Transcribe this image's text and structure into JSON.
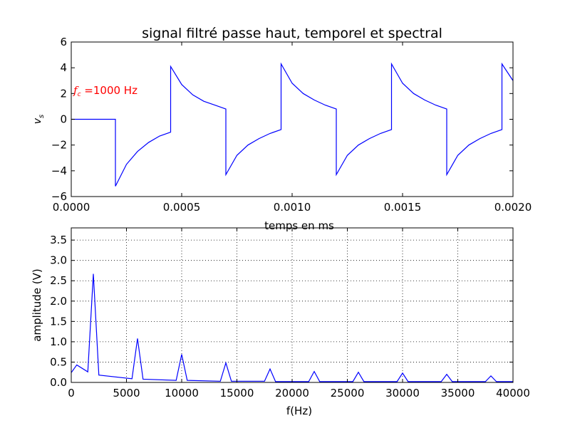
{
  "title": "signal filtré passe haut, temporel et spectral",
  "chart_data": [
    {
      "type": "line",
      "name": "temporal",
      "xlabel": "temps en ms",
      "ylabel": "v_s",
      "annotation": {
        "prefix": "f",
        "sub": "c",
        "text": " =1000 Hz",
        "color": "#ff0000"
      },
      "xlim": [
        0,
        0.002
      ],
      "ylim": [
        -6,
        6
      ],
      "xticks": [
        0,
        0.0005,
        0.001,
        0.0015,
        0.002
      ],
      "xtick_labels": [
        "0.0000",
        "0.0005",
        "0.0010",
        "0.0015",
        "0.0020"
      ],
      "yticks": [
        -6,
        -4,
        -2,
        0,
        2,
        4,
        6
      ],
      "ytick_labels": [
        "−6",
        "−4",
        "−2",
        "0",
        "2",
        "4",
        "6"
      ],
      "grid": false,
      "color": "#0000ff",
      "x": [
        0,
        0.0002,
        0.0002,
        0.00025,
        0.0003,
        0.00035,
        0.0004,
        0.00045,
        0.00045,
        0.0005,
        0.00055,
        0.0006,
        0.00065,
        0.0007,
        0.0007,
        0.00075,
        0.0008,
        0.00085,
        0.0009,
        0.00095,
        0.00095,
        0.001,
        0.00105,
        0.0011,
        0.00115,
        0.0012,
        0.0012,
        0.00125,
        0.0013,
        0.00135,
        0.0014,
        0.00145,
        0.00145,
        0.0015,
        0.00155,
        0.0016,
        0.00165,
        0.0017,
        0.0017,
        0.00175,
        0.0018,
        0.00185,
        0.0019,
        0.00195,
        0.00195,
        0.002
      ],
      "y": [
        0,
        0,
        -5.2,
        -3.5,
        -2.5,
        -1.8,
        -1.3,
        -1.0,
        4.1,
        2.7,
        1.9,
        1.4,
        1.1,
        0.8,
        -4.3,
        -2.8,
        -2.0,
        -1.5,
        -1.1,
        -0.8,
        4.3,
        2.8,
        2.0,
        1.5,
        1.1,
        0.8,
        -4.3,
        -2.8,
        -2.0,
        -1.5,
        -1.1,
        -0.8,
        4.3,
        2.8,
        2.0,
        1.5,
        1.1,
        0.8,
        -4.3,
        -2.8,
        -2.0,
        -1.5,
        -1.1,
        -0.8,
        4.3,
        3.0
      ]
    },
    {
      "type": "line",
      "name": "spectral",
      "xlabel": "f(Hz)",
      "ylabel": "amplitude (V)",
      "xlim": [
        0,
        40000
      ],
      "ylim": [
        0,
        3.8
      ],
      "xticks": [
        0,
        5000,
        10000,
        15000,
        20000,
        25000,
        30000,
        35000,
        40000
      ],
      "xtick_labels": [
        "0",
        "5000",
        "10000",
        "15000",
        "20000",
        "25000",
        "30000",
        "35000",
        "40000"
      ],
      "yticks": [
        0,
        0.5,
        1.0,
        1.5,
        2.0,
        2.5,
        3.0,
        3.5
      ],
      "ytick_labels": [
        "0.0",
        "0.5",
        "1.0",
        "1.5",
        "2.0",
        "2.5",
        "3.0",
        "3.5"
      ],
      "grid": true,
      "color": "#0000ff",
      "x": [
        0,
        500,
        1500,
        2000,
        2500,
        5500,
        6000,
        6500,
        9500,
        10000,
        10500,
        13500,
        14000,
        14500,
        17500,
        18000,
        18500,
        21500,
        22000,
        22500,
        25500,
        26000,
        26500,
        29500,
        30000,
        30500,
        33500,
        34000,
        34500,
        37500,
        38000,
        38500,
        40000
      ],
      "y": [
        0.24,
        0.43,
        0.26,
        2.67,
        0.18,
        0.09,
        1.08,
        0.08,
        0.05,
        0.69,
        0.05,
        0.03,
        0.48,
        0.03,
        0.03,
        0.33,
        0.02,
        0.02,
        0.27,
        0.02,
        0.02,
        0.25,
        0.02,
        0.02,
        0.23,
        0.02,
        0.02,
        0.2,
        0.02,
        0.02,
        0.16,
        0.02,
        0.02
      ]
    }
  ]
}
